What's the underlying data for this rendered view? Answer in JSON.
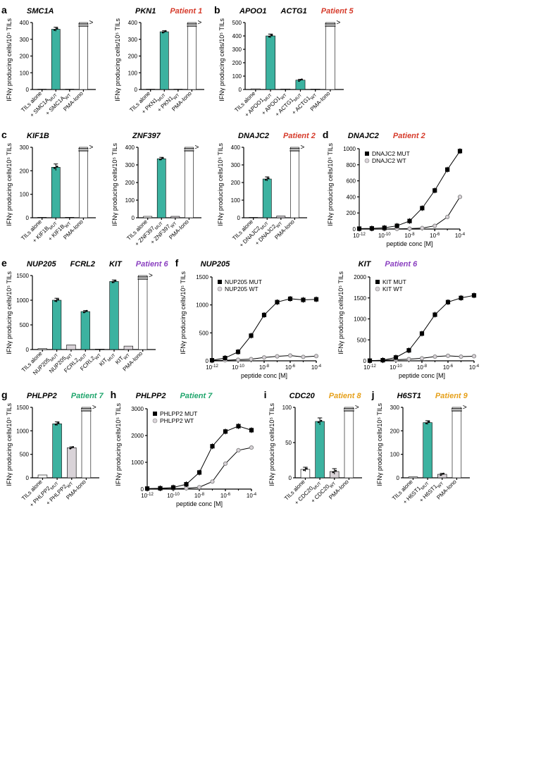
{
  "colors": {
    "mut_bar": "#3cb2a0",
    "wt_bar": "#d9d3d8",
    "open_bar": "#ffffff",
    "axis": "#000000",
    "mut_marker": "#000000",
    "wt_marker": "#d9d3d8"
  },
  "ylabel": "IFNγ producing cells/10⁵ TILs",
  "xlabel_dose": "peptide conc [M]",
  "panels": {
    "a": {
      "letter": "a",
      "patient": "Patient 1",
      "patient_color": "#d63a2a",
      "charts": [
        {
          "gene": "SMC1A",
          "ymax": 400,
          "ytick": 100,
          "bars": [
            {
              "label": "TILs alone",
              "v": 2,
              "color": "open"
            },
            {
              "label": "+ SMC1A_{MUT}",
              "v": 360,
              "color": "mut",
              "err": 12
            },
            {
              "label": "+ SMC1A_{WT}",
              "v": 2,
              "color": "wt"
            },
            {
              "label": "PMA-Iono",
              "v": 400,
              "color": "open",
              "overflow": true
            }
          ]
        },
        {
          "gene": "PKN1",
          "ymax": 400,
          "ytick": 100,
          "bars": [
            {
              "label": "TILs alone",
              "v": 2,
              "color": "open"
            },
            {
              "label": "+ PKN1_{MUT}",
              "v": 345,
              "color": "mut",
              "err": 6
            },
            {
              "label": "+ PKN1_{WT}",
              "v": 2,
              "color": "wt"
            },
            {
              "label": "PMA-Iono",
              "v": 400,
              "color": "open",
              "overflow": true
            }
          ]
        }
      ]
    },
    "b": {
      "letter": "b",
      "patient": "Patient 5",
      "patient_color": "#d63a2a",
      "charts": [
        {
          "gene": "APOO1    ACTG1",
          "ymax": 500,
          "ytick": 100,
          "bars": [
            {
              "label": "TILs alone",
              "v": 5,
              "color": "open"
            },
            {
              "label": "+ APOO1_{MUT}",
              "v": 400,
              "color": "mut",
              "err": 14
            },
            {
              "label": "+ APOO1_{WT}",
              "v": 4,
              "color": "wt"
            },
            {
              "label": "+ ACTG1_{MUT}",
              "v": 70,
              "color": "mut",
              "err": 6
            },
            {
              "label": "+ ACTG1_{WT}",
              "v": 3,
              "color": "wt"
            },
            {
              "label": "PMA-Iono",
              "v": 500,
              "color": "open",
              "overflow": true
            }
          ]
        }
      ]
    },
    "c": {
      "letter": "c",
      "patient": "Patient 2",
      "patient_color": "#d63a2a",
      "charts": [
        {
          "gene": "KIF1B",
          "ymax": 300,
          "ytick": 100,
          "bars": [
            {
              "label": "TILs alone",
              "v": 2,
              "color": "open"
            },
            {
              "label": "+ KIF1B_{MUT}",
              "v": 215,
              "color": "mut",
              "err": 14
            },
            {
              "label": "+ KIF1B_{WT}",
              "v": 2,
              "color": "wt"
            },
            {
              "label": "PMA-Iono",
              "v": 300,
              "color": "open",
              "overflow": true
            }
          ]
        },
        {
          "gene": "ZNF397",
          "ymax": 400,
          "ytick": 100,
          "bars": [
            {
              "label": "TILs alone",
              "v": 8,
              "color": "open"
            },
            {
              "label": "+ ZNF397_{MUT}",
              "v": 335,
              "color": "mut",
              "err": 8
            },
            {
              "label": "+ ZNF397_{WT}",
              "v": 8,
              "color": "wt"
            },
            {
              "label": "PMA-Iono",
              "v": 400,
              "color": "open",
              "overflow": true
            }
          ]
        },
        {
          "gene": "DNAJC2",
          "ymax": 400,
          "ytick": 100,
          "bars": [
            {
              "label": "TILs alone",
              "v": 2,
              "color": "open"
            },
            {
              "label": "+ DNAJC2_{MUT}",
              "v": 220,
              "color": "mut",
              "err": 12
            },
            {
              "label": "+ DNAJC2_{WT}",
              "v": 10,
              "color": "wt"
            },
            {
              "label": "PMA-Iono",
              "v": 400,
              "color": "open",
              "overflow": true
            }
          ]
        }
      ]
    },
    "d": {
      "letter": "d",
      "patient": "Patient 2",
      "patient_color": "#d63a2a",
      "dose": {
        "gene": "DNAJC2",
        "ymax": 1000,
        "ytick": 200,
        "x_exp": [
          -12,
          -11,
          -10,
          -9,
          -8,
          -7,
          -6,
          -5,
          -4
        ],
        "x_tick_exp": [
          -12,
          -10,
          -8,
          -6,
          -4
        ],
        "mut": [
          5,
          8,
          15,
          40,
          100,
          260,
          480,
          740,
          970
        ],
        "wt": [
          0,
          0,
          0,
          2,
          5,
          12,
          40,
          150,
          400
        ],
        "legend_m": "DNAJC2 MUT",
        "legend_w": "DNAJC2 WT"
      }
    },
    "e": {
      "letter": "e",
      "patient": "Patient 6",
      "patient_color": "#8a3fc0",
      "charts": [
        {
          "gene": "NUP205  FCRL2  KIT",
          "ymax": 1500,
          "ytick": 500,
          "bars": [
            {
              "label": "TILs alone",
              "v": 20,
              "color": "open"
            },
            {
              "label": "NUP205_{MUT}",
              "v": 1000,
              "color": "mut",
              "err": 40
            },
            {
              "label": "NUP205_{WT}",
              "v": 95,
              "color": "wt"
            },
            {
              "label": "FCRL2_{MUT}",
              "v": 770,
              "color": "mut",
              "err": 20
            },
            {
              "label": "FCRL2_{WT}",
              "v": 10,
              "color": "wt"
            },
            {
              "label": "KIT_{MUT}",
              "v": 1380,
              "color": "mut",
              "err": 30
            },
            {
              "label": "KIT_{WT}",
              "v": 70,
              "color": "wt"
            },
            {
              "label": "PMA-Iono",
              "v": 1500,
              "color": "open",
              "overflow": true
            }
          ]
        }
      ]
    },
    "f": {
      "letter": "f",
      "patient": "Patient 6",
      "patient_color": "#8a3fc0",
      "doses": [
        {
          "gene": "NUP205",
          "ymax": 1500,
          "ytick": 500,
          "x_exp": [
            -12,
            -11,
            -10,
            -9,
            -8,
            -7,
            -6,
            -5,
            -4
          ],
          "x_tick_exp": [
            -12,
            -10,
            -8,
            -6,
            -4
          ],
          "mut": [
            10,
            50,
            160,
            450,
            820,
            1050,
            1110,
            1090,
            1100
          ],
          "wt": [
            8,
            10,
            20,
            30,
            60,
            80,
            95,
            70,
            85
          ],
          "legend_m": "NUP205 MUT",
          "legend_w": "NUP205 WT"
        },
        {
          "gene": "KIT",
          "ymax": 2000,
          "ytick": 500,
          "x_exp": [
            -12,
            -11,
            -10,
            -9,
            -8,
            -7,
            -6,
            -5,
            -4
          ],
          "x_tick_exp": [
            -12,
            -10,
            -8,
            -6,
            -4
          ],
          "mut": [
            5,
            15,
            80,
            250,
            650,
            1100,
            1400,
            1500,
            1560
          ],
          "wt": [
            5,
            10,
            25,
            40,
            60,
            100,
            120,
            100,
            110
          ],
          "legend_m": "KIT MUT",
          "legend_w": "KIT WT"
        }
      ]
    },
    "g": {
      "letter": "g",
      "patient": "Patient 7",
      "patient_color": "#1fa56c",
      "charts": [
        {
          "gene": "PHLPP2",
          "ymax": 1500,
          "ytick": 500,
          "bars": [
            {
              "label": "TILs alone",
              "v": 60,
              "color": "open"
            },
            {
              "label": "+ PHLPP2_{MUT}",
              "v": 1150,
              "color": "mut",
              "err": 40
            },
            {
              "label": "+ PHLPP2_{WT}",
              "v": 640,
              "color": "wt",
              "err": 20
            },
            {
              "label": "PMA-Iono",
              "v": 1500,
              "color": "open",
              "overflow": true
            }
          ]
        }
      ]
    },
    "h": {
      "letter": "h",
      "patient": "Patient 7",
      "patient_color": "#1fa56c",
      "dose": {
        "gene": "PHLPP2",
        "ymax": 3000,
        "ytick": 1000,
        "x_exp": [
          -12,
          -11,
          -10,
          -9,
          -8,
          -7,
          -6,
          -5,
          -4
        ],
        "x_tick_exp": [
          -12,
          -10,
          -8,
          -6,
          -4
        ],
        "mut": [
          20,
          30,
          60,
          180,
          620,
          1600,
          2150,
          2350,
          2200
        ],
        "wt": [
          10,
          12,
          18,
          30,
          70,
          280,
          950,
          1450,
          1550
        ],
        "legend_m": "PHLPP2 MUT",
        "legend_w": "PHLPP2 WT"
      }
    },
    "i": {
      "letter": "i",
      "patient": "Patient 8",
      "patient_color": "#e6a01a",
      "charts": [
        {
          "gene": "CDC20",
          "ymax": 100,
          "ytick": 50,
          "bars": [
            {
              "label": "TILs alone",
              "v": 12,
              "color": "open",
              "err": 3
            },
            {
              "label": "+ CDC20_{MUT}",
              "v": 80,
              "color": "mut",
              "err": 5
            },
            {
              "label": "+ CDC20_{WT}",
              "v": 9,
              "color": "wt",
              "err": 4
            },
            {
              "label": "PMA-Iono",
              "v": 100,
              "color": "open",
              "overflow": true
            }
          ]
        }
      ]
    },
    "j": {
      "letter": "j",
      "patient": "Patient 9",
      "patient_color": "#e6a01a",
      "charts": [
        {
          "gene": "H6ST1",
          "ymax": 300,
          "ytick": 100,
          "bars": [
            {
              "label": "TILs alone",
              "v": 4,
              "color": "open"
            },
            {
              "label": "+ H6ST1_{MUT}",
              "v": 235,
              "color": "mut",
              "err": 8
            },
            {
              "label": "+ H6ST1_{WT}",
              "v": 15,
              "color": "wt",
              "err": 4
            },
            {
              "label": "PMA-Iono",
              "v": 300,
              "color": "open",
              "overflow": true
            }
          ]
        }
      ]
    }
  }
}
